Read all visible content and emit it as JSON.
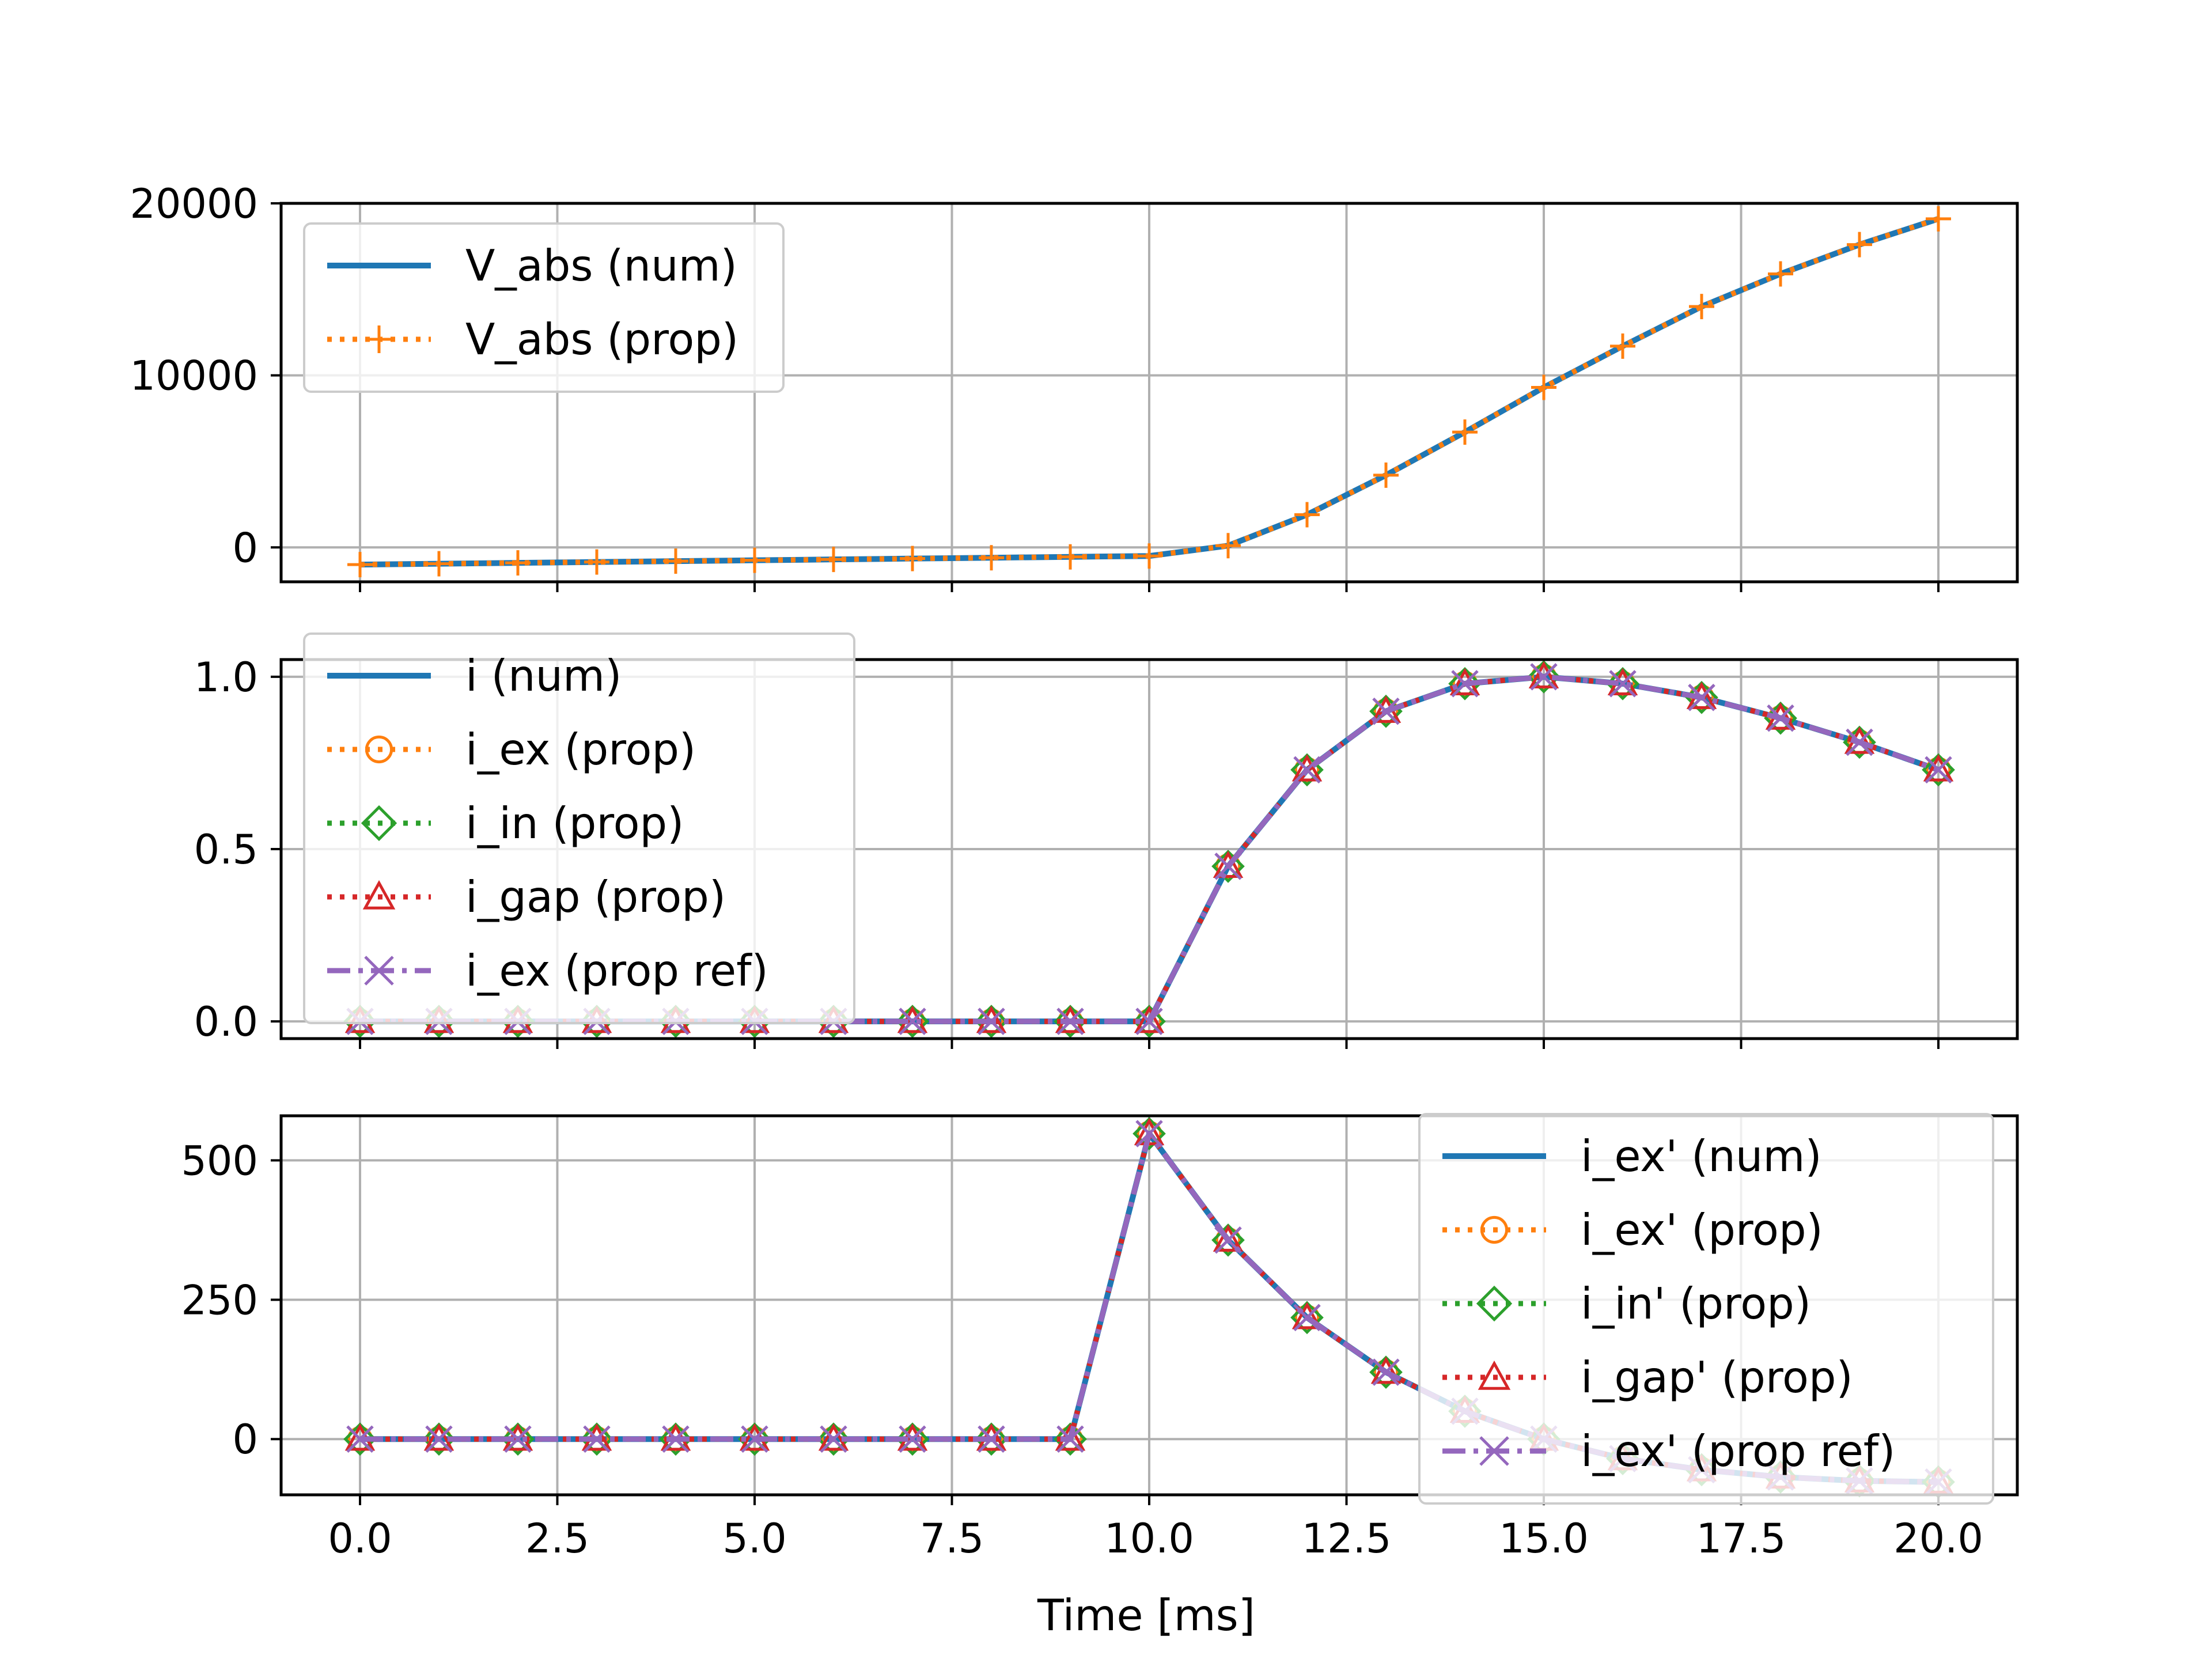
{
  "chart_data": {
    "type": "line",
    "xlabel": "Time [ms]",
    "x": [
      0,
      1,
      2,
      3,
      4,
      5,
      6,
      7,
      8,
      9,
      10,
      11,
      12,
      13,
      14,
      15,
      16,
      17,
      18,
      19,
      20
    ],
    "xlim": [
      -1,
      21
    ],
    "xticks": [
      0,
      2.5,
      5,
      7.5,
      10,
      12.5,
      15,
      17.5,
      20
    ],
    "xtick_labels": [
      "0.0",
      "2.5",
      "5.0",
      "7.5",
      "10.0",
      "12.5",
      "15.0",
      "17.5",
      "20.0"
    ],
    "grid": true,
    "colors": {
      "blue": "#1f77b4",
      "orange": "#ff7f0e",
      "green": "#2ca02c",
      "red": "#d62728",
      "purple": "#9467bd",
      "grid": "#b0b0b0"
    },
    "subplots": [
      {
        "id": "voltage",
        "ylim": [
          -2000,
          20000
        ],
        "yticks": [
          0,
          10000,
          20000
        ],
        "ytick_labels": [
          "0",
          "10000",
          "20000"
        ],
        "legend_position": "upper-left",
        "series": [
          {
            "name": "V_abs (num)",
            "color": "#1f77b4",
            "style": "solid",
            "marker": "none",
            "values": [
              -1000,
              -950,
              -900,
              -850,
              -800,
              -750,
              -700,
              -650,
              -600,
              -550,
              -500,
              100,
              1900,
              4200,
              6700,
              9300,
              11700,
              14000,
              15900,
              17600,
              19100
            ]
          },
          {
            "name": "V_abs (prop)",
            "color": "#ff7f0e",
            "style": "dotted",
            "marker": "plus",
            "values": [
              -1000,
              -950,
              -900,
              -850,
              -800,
              -750,
              -700,
              -650,
              -600,
              -550,
              -500,
              100,
              1900,
              4200,
              6700,
              9300,
              11700,
              14000,
              15900,
              17600,
              19100
            ]
          }
        ]
      },
      {
        "id": "current",
        "ylim": [
          -0.05,
          1.05
        ],
        "yticks": [
          0.0,
          0.5,
          1.0
        ],
        "ytick_labels": [
          "0.0",
          "0.5",
          "1.0"
        ],
        "legend_position": "upper-left",
        "series": [
          {
            "name": "i (num)",
            "color": "#1f77b4",
            "style": "solid",
            "marker": "none",
            "values": [
              0,
              0,
              0,
              0,
              0,
              0,
              0,
              0,
              0,
              0,
              0,
              0.45,
              0.73,
              0.9,
              0.98,
              1.0,
              0.98,
              0.94,
              0.88,
              0.81,
              0.73
            ]
          },
          {
            "name": "i_ex (prop)",
            "color": "#ff7f0e",
            "style": "dotted",
            "marker": "circle",
            "values": [
              0,
              0,
              0,
              0,
              0,
              0,
              0,
              0,
              0,
              0,
              0,
              0.45,
              0.73,
              0.9,
              0.98,
              1.0,
              0.98,
              0.94,
              0.88,
              0.81,
              0.73
            ]
          },
          {
            "name": "i_in (prop)",
            "color": "#2ca02c",
            "style": "dotted",
            "marker": "diamond",
            "values": [
              0,
              0,
              0,
              0,
              0,
              0,
              0,
              0,
              0,
              0,
              0,
              0.45,
              0.73,
              0.9,
              0.98,
              1.0,
              0.98,
              0.94,
              0.88,
              0.81,
              0.73
            ]
          },
          {
            "name": "i_gap (prop)",
            "color": "#d62728",
            "style": "dotted",
            "marker": "triangle",
            "values": [
              0,
              0,
              0,
              0,
              0,
              0,
              0,
              0,
              0,
              0,
              0,
              0.45,
              0.73,
              0.9,
              0.98,
              1.0,
              0.98,
              0.94,
              0.88,
              0.81,
              0.73
            ]
          },
          {
            "name": "i_ex (prop ref)",
            "color": "#9467bd",
            "style": "dashdot",
            "marker": "x",
            "values": [
              0,
              0,
              0,
              0,
              0,
              0,
              0,
              0,
              0,
              0,
              0,
              0.45,
              0.73,
              0.9,
              0.98,
              1.0,
              0.98,
              0.94,
              0.88,
              0.81,
              0.73
            ]
          }
        ]
      },
      {
        "id": "derivative",
        "ylim": [
          -100,
          580
        ],
        "yticks": [
          0,
          250,
          500
        ],
        "ytick_labels": [
          "0",
          "250",
          "500"
        ],
        "legend_position": "upper-right",
        "series": [
          {
            "name": "i_ex' (num)",
            "color": "#1f77b4",
            "style": "solid",
            "marker": "none",
            "values": [
              0,
              0,
              0,
              0,
              0,
              0,
              0,
              0,
              0,
              0,
              548,
              357,
              218,
              120,
              50,
              0,
              -35,
              -55,
              -68,
              -75,
              -77
            ]
          },
          {
            "name": "i_ex' (prop)",
            "color": "#ff7f0e",
            "style": "dotted",
            "marker": "circle",
            "values": [
              0,
              0,
              0,
              0,
              0,
              0,
              0,
              0,
              0,
              0,
              548,
              357,
              218,
              120,
              50,
              0,
              -35,
              -55,
              -68,
              -75,
              -77
            ]
          },
          {
            "name": "i_in' (prop)",
            "color": "#2ca02c",
            "style": "dotted",
            "marker": "diamond",
            "values": [
              0,
              0,
              0,
              0,
              0,
              0,
              0,
              0,
              0,
              0,
              548,
              357,
              218,
              120,
              50,
              0,
              -35,
              -55,
              -68,
              -75,
              -77
            ]
          },
          {
            "name": "i_gap' (prop)",
            "color": "#d62728",
            "style": "dotted",
            "marker": "triangle",
            "values": [
              0,
              0,
              0,
              0,
              0,
              0,
              0,
              0,
              0,
              0,
              548,
              357,
              218,
              120,
              50,
              0,
              -35,
              -55,
              -68,
              -75,
              -77
            ]
          },
          {
            "name": "i_ex' (prop ref)",
            "color": "#9467bd",
            "style": "dashdot",
            "marker": "x",
            "values": [
              0,
              0,
              0,
              0,
              0,
              0,
              0,
              0,
              0,
              0,
              548,
              357,
              218,
              120,
              50,
              0,
              -35,
              -55,
              -68,
              -75,
              -77
            ]
          }
        ]
      }
    ]
  }
}
